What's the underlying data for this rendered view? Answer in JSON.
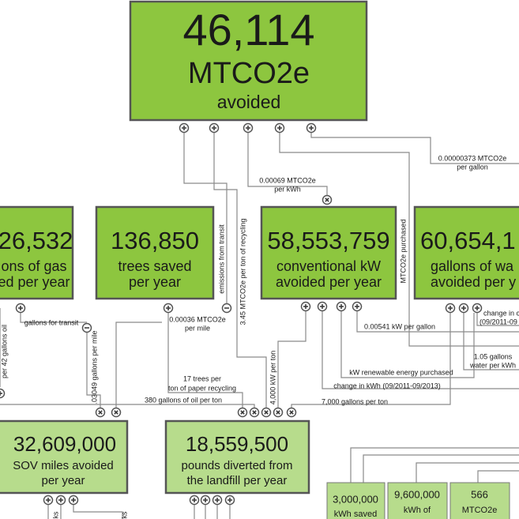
{
  "nodes": [
    {
      "value": "46,114",
      "lines": [
        "MTCO2e",
        "avoided"
      ]
    },
    {
      "value": "26,532",
      "lines": [
        "ons of gas",
        "ed per year"
      ]
    },
    {
      "value": "136,850",
      "lines": [
        "trees saved",
        "per year"
      ]
    },
    {
      "value": "58,553,759",
      "lines": [
        "conventional kW",
        "avoided per year"
      ]
    },
    {
      "value": "60,654,1",
      "lines": [
        "gallons of wa",
        "avoided per y"
      ]
    },
    {
      "value": "32,609,000",
      "lines": [
        "SOV miles avoided",
        "per year"
      ]
    },
    {
      "value": "18,559,500",
      "lines": [
        "pounds diverted from",
        "the landfill per year"
      ]
    },
    {
      "value": "3,000,000",
      "lines": [
        "kWh saved"
      ]
    },
    {
      "value": "9,600,000",
      "lines": [
        "kWh of"
      ]
    },
    {
      "value": "566",
      "lines": [
        "MTCO2e"
      ]
    }
  ],
  "edge_labels": [
    [
      "0.00000373 MTCO2e",
      "per gallon"
    ],
    [
      "0.00069 MTCO2e",
      "per kWh"
    ],
    [
      "emissions from transit"
    ],
    [
      "3.45 MTCO2e per ton of recycling"
    ],
    [
      "MTCO2e purchased"
    ],
    [
      "gallons for transit"
    ],
    [
      "per 42 gallons oil"
    ],
    [
      ".03049 gallons per mile"
    ],
    [
      "0.00036 MTCO2e",
      "per mile"
    ],
    [
      "0.00541 kW per gallon"
    ],
    [
      "change in c",
      "(09/2011-09"
    ],
    [
      "1.05 gallons",
      "water per kWh"
    ],
    [
      "kW renewable energy purchased"
    ],
    [
      "4,000 kW per ton"
    ],
    [
      "change in kWh (09/2011-09/2013)"
    ],
    [
      "17 trees per",
      "ton of paper recycling"
    ],
    [
      "380 gallons of oil per ton"
    ],
    [
      "7,000 gallons per ton"
    ],
    [
      "ks"
    ],
    [
      "ks"
    ]
  ]
}
